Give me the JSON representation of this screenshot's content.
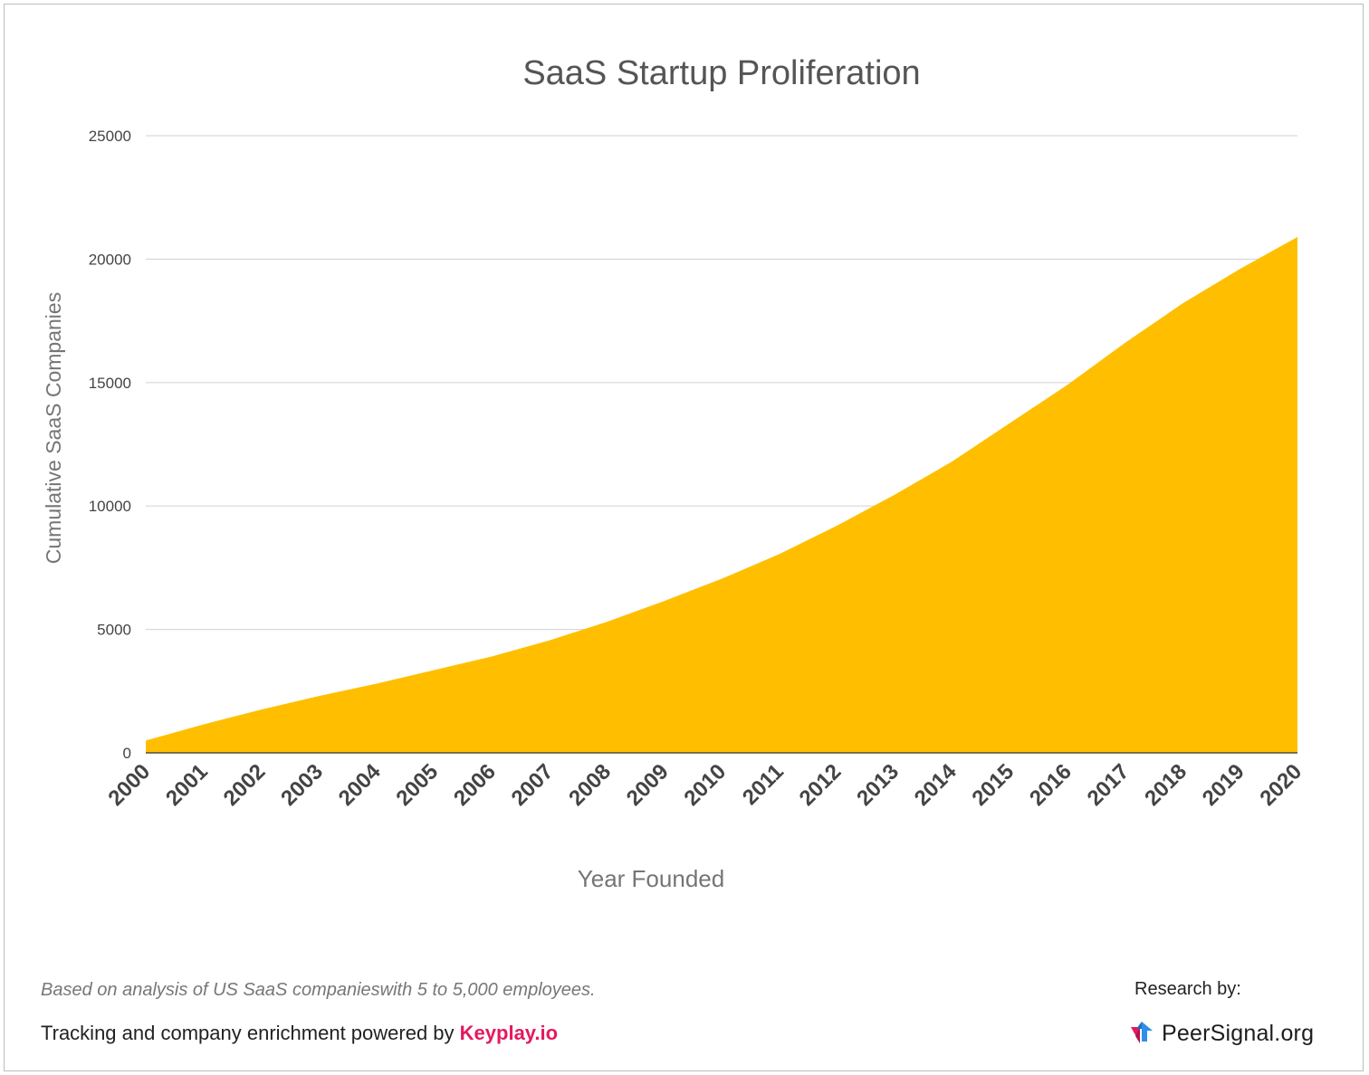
{
  "chart_data": {
    "type": "area",
    "title": "SaaS Startup Proliferation",
    "xlabel": "Year Founded",
    "ylabel": "Cumulative SaaS Companies",
    "ylim": [
      0,
      25000
    ],
    "yticks": [
      0,
      5000,
      10000,
      15000,
      20000,
      25000
    ],
    "grid": true,
    "legend": "none",
    "colors": {
      "area": "#FFBF00",
      "grid": "#d9d9d9",
      "axis_text": "#444444",
      "label_text": "#757575"
    },
    "series": [
      {
        "x": [
          "2000",
          "2001",
          "2002",
          "2003",
          "2004",
          "2005",
          "2006",
          "2007",
          "2008",
          "2009",
          "2010",
          "2011",
          "2012",
          "2013",
          "2014",
          "2015",
          "2016",
          "2017",
          "2018",
          "2019",
          "2020"
        ],
        "values": [
          500,
          1150,
          1750,
          2300,
          2800,
          3350,
          3900,
          4550,
          5300,
          6150,
          7050,
          8050,
          9200,
          10450,
          11800,
          13350,
          14900,
          16600,
          18200,
          19600,
          20900
        ]
      }
    ]
  },
  "footer": {
    "note": "Based on analysis of US SaaS companieswith 5 to 5,000 employees.",
    "tracking_prefix": "Tracking and company enrichment powered by ",
    "tracking_brand": "Keyplay.io",
    "research_label": "Research by:",
    "logo_text": "PeerSignal.org",
    "brand_color": "#e5195e"
  }
}
